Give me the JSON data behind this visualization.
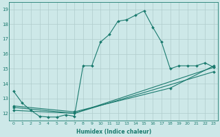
{
  "bg_color": "#cde8e8",
  "grid_color": "#b0cccc",
  "line_color": "#1a7a6e",
  "series1_x": [
    0,
    1,
    2,
    3,
    4,
    5,
    6,
    7,
    8,
    9,
    10,
    11,
    12,
    13,
    14,
    15,
    16,
    17,
    18,
    19,
    20,
    21,
    22,
    23
  ],
  "series1_y": [
    13.5,
    12.7,
    12.2,
    11.8,
    11.75,
    11.75,
    11.9,
    11.8,
    15.2,
    15.2,
    16.8,
    17.3,
    18.2,
    18.3,
    18.6,
    18.9,
    17.8,
    16.8,
    15.0,
    15.2,
    15.2,
    15.2,
    15.4,
    15.1
  ],
  "series2_x": [
    0,
    7,
    23
  ],
  "series2_y": [
    12.2,
    12.0,
    15.1
  ],
  "series3_x": [
    0,
    7,
    23
  ],
  "series3_y": [
    12.4,
    12.0,
    14.8
  ],
  "series4_x": [
    0,
    7,
    18,
    23
  ],
  "series4_y": [
    12.5,
    12.1,
    13.7,
    15.2
  ],
  "xlabel": "Humidex (Indice chaleur)",
  "xlim": [
    -0.5,
    23.5
  ],
  "ylim": [
    11.5,
    19.5
  ],
  "yticks": [
    12,
    13,
    14,
    15,
    16,
    17,
    18,
    19
  ],
  "xticks": [
    0,
    1,
    2,
    3,
    4,
    5,
    6,
    7,
    8,
    9,
    10,
    11,
    12,
    13,
    14,
    15,
    16,
    17,
    18,
    19,
    20,
    21,
    22,
    23
  ]
}
